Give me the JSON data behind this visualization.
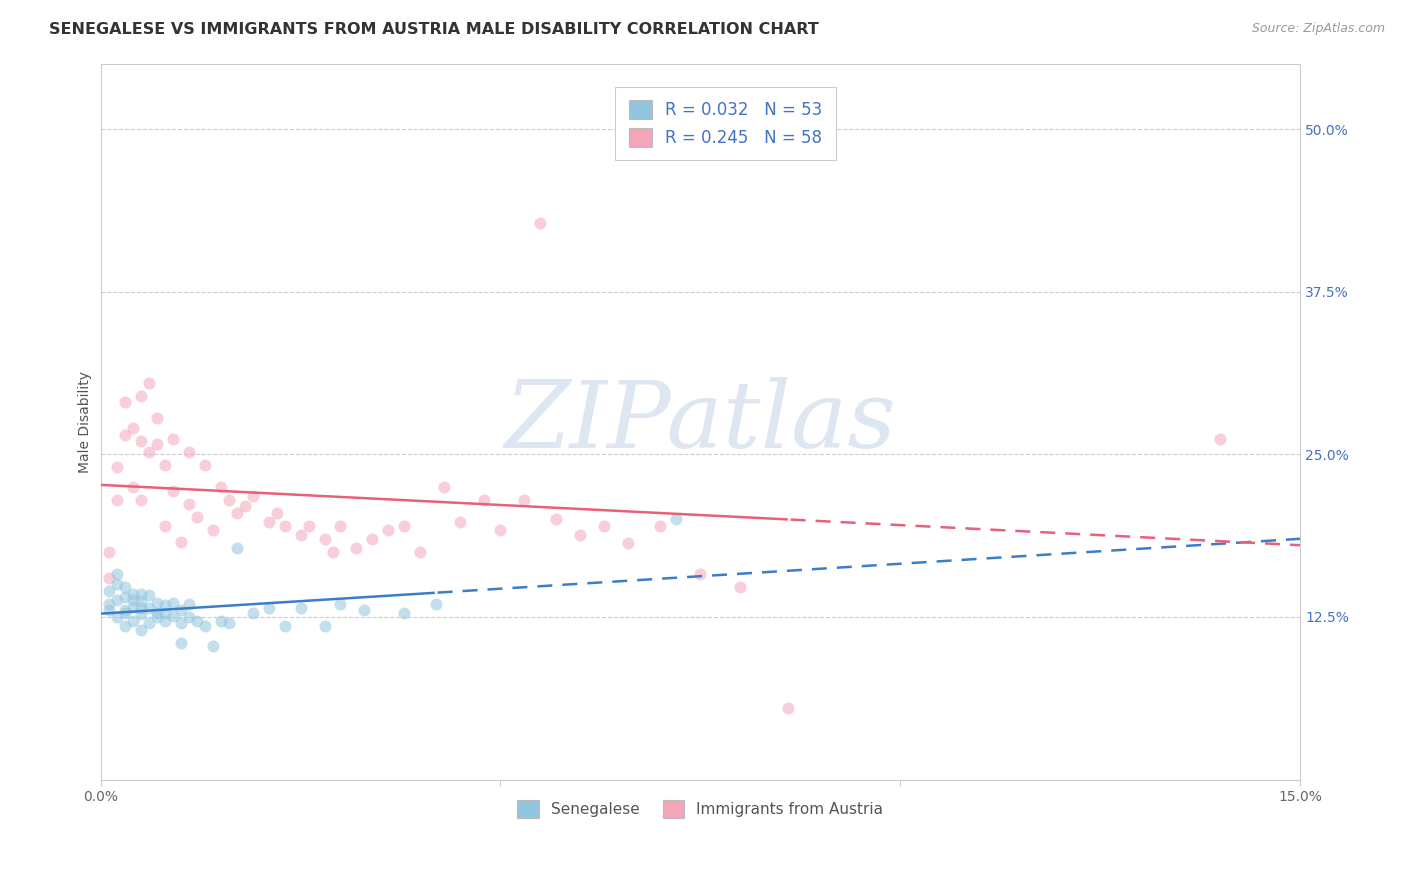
{
  "title": "SENEGALESE VS IMMIGRANTS FROM AUSTRIA MALE DISABILITY CORRELATION CHART",
  "source_text": "Source: ZipAtlas.com",
  "ylabel_label": "Male Disability",
  "xlim": [
    0.0,
    0.15
  ],
  "ylim": [
    0.0,
    0.55
  ],
  "xtick_vals": [
    0.0,
    0.05,
    0.1,
    0.15
  ],
  "xtick_labels": [
    "0.0%",
    "",
    "",
    "15.0%"
  ],
  "ytick_vals": [
    0.125,
    0.25,
    0.375,
    0.5
  ],
  "ytick_labels": [
    "12.5%",
    "25.0%",
    "37.5%",
    "50.0%"
  ],
  "blue_color": "#92c5de",
  "pink_color": "#f4a6b8",
  "blue_line_color": "#3a7dc9",
  "pink_line_color": "#e8607a",
  "blue_text_color": "#4472c4",
  "watermark_text": "ZIPatlas",
  "watermark_color": "#c8d8e8",
  "background_color": "#ffffff",
  "grid_color": "#cccccc",
  "title_fontsize": 11.5,
  "axis_label_fontsize": 10,
  "tick_fontsize": 10,
  "marker_size": 75,
  "marker_alpha": 0.55,
  "sen_x": [
    0.001,
    0.001,
    0.001,
    0.002,
    0.002,
    0.002,
    0.002,
    0.003,
    0.003,
    0.003,
    0.003,
    0.003,
    0.004,
    0.004,
    0.004,
    0.004,
    0.005,
    0.005,
    0.005,
    0.005,
    0.005,
    0.006,
    0.006,
    0.006,
    0.007,
    0.007,
    0.007,
    0.008,
    0.008,
    0.008,
    0.009,
    0.009,
    0.01,
    0.01,
    0.01,
    0.011,
    0.011,
    0.012,
    0.013,
    0.014,
    0.015,
    0.016,
    0.017,
    0.019,
    0.021,
    0.023,
    0.025,
    0.028,
    0.03,
    0.033,
    0.038,
    0.042,
    0.072
  ],
  "sen_y": [
    0.135,
    0.145,
    0.13,
    0.125,
    0.138,
    0.15,
    0.158,
    0.118,
    0.13,
    0.14,
    0.148,
    0.128,
    0.122,
    0.133,
    0.143,
    0.138,
    0.115,
    0.127,
    0.137,
    0.143,
    0.132,
    0.12,
    0.132,
    0.142,
    0.125,
    0.136,
    0.128,
    0.122,
    0.134,
    0.128,
    0.136,
    0.126,
    0.105,
    0.12,
    0.13,
    0.125,
    0.135,
    0.122,
    0.118,
    0.103,
    0.122,
    0.12,
    0.178,
    0.128,
    0.132,
    0.118,
    0.132,
    0.118,
    0.135,
    0.13,
    0.128,
    0.135,
    0.2
  ],
  "aut_x": [
    0.001,
    0.001,
    0.002,
    0.002,
    0.003,
    0.003,
    0.004,
    0.004,
    0.005,
    0.005,
    0.005,
    0.006,
    0.006,
    0.007,
    0.007,
    0.008,
    0.008,
    0.009,
    0.009,
    0.01,
    0.011,
    0.011,
    0.012,
    0.013,
    0.014,
    0.015,
    0.016,
    0.017,
    0.018,
    0.019,
    0.021,
    0.022,
    0.023,
    0.025,
    0.026,
    0.028,
    0.029,
    0.03,
    0.032,
    0.034,
    0.036,
    0.038,
    0.04,
    0.043,
    0.045,
    0.048,
    0.05,
    0.053,
    0.055,
    0.057,
    0.06,
    0.063,
    0.066,
    0.07,
    0.075,
    0.08,
    0.086,
    0.14
  ],
  "aut_y": [
    0.155,
    0.175,
    0.24,
    0.215,
    0.265,
    0.29,
    0.225,
    0.27,
    0.215,
    0.26,
    0.295,
    0.252,
    0.305,
    0.258,
    0.278,
    0.195,
    0.242,
    0.222,
    0.262,
    0.183,
    0.212,
    0.252,
    0.202,
    0.242,
    0.192,
    0.225,
    0.215,
    0.205,
    0.21,
    0.218,
    0.198,
    0.205,
    0.195,
    0.188,
    0.195,
    0.185,
    0.175,
    0.195,
    0.178,
    0.185,
    0.192,
    0.195,
    0.175,
    0.225,
    0.198,
    0.215,
    0.192,
    0.215,
    0.428,
    0.2,
    0.188,
    0.195,
    0.182,
    0.195,
    0.158,
    0.148,
    0.055,
    0.262
  ]
}
